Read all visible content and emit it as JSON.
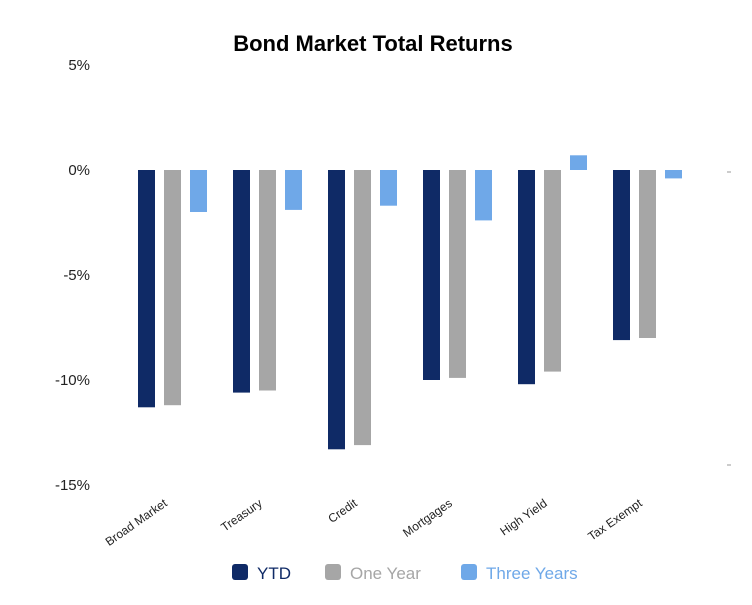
{
  "chart_data": {
    "type": "bar",
    "title": "Bond Market Total Returns",
    "categories": [
      "Broad Market",
      "Treasury",
      "Credit",
      "Mortgages",
      "High Yield",
      "Tax Exempt"
    ],
    "series": [
      {
        "name": "YTD",
        "color": "#0f2a66",
        "values": [
          -11.3,
          -10.6,
          -13.3,
          -10.0,
          -10.2,
          -8.1
        ]
      },
      {
        "name": "One Year",
        "color": "#a6a6a6",
        "values": [
          -11.2,
          -10.5,
          -13.1,
          -9.9,
          -9.6,
          -8.0
        ]
      },
      {
        "name": "Three Years",
        "color": "#6fa8e8",
        "values": [
          -2.0,
          -1.9,
          -1.7,
          -2.4,
          0.7,
          -0.4
        ]
      }
    ],
    "yticks": [
      "5%",
      "0%",
      "-5%",
      "-10%",
      "-15%"
    ],
    "ytick_values": [
      5,
      0,
      -5,
      -10,
      -15
    ],
    "ylim": [
      -15,
      5
    ],
    "grid": false,
    "legend": "bottom"
  }
}
